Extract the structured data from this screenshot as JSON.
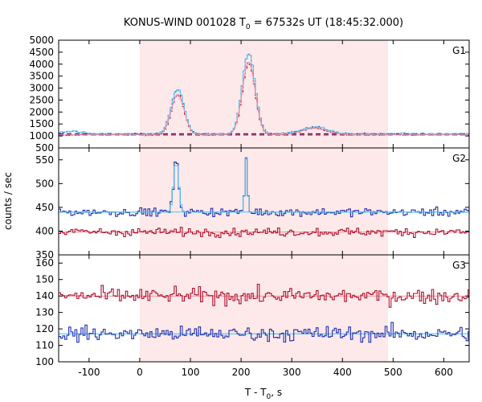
{
  "chart_data": {
    "type": "line",
    "title": "KONUS-WIND 001028 T",
    "title_sub": "0",
    "title_rest": " = 67532s UT (18:45:32.000)",
    "xlabel": "T - T",
    "xlabel_sub": "0",
    "xlabel_rest": ", s",
    "ylabel": "counts / sec",
    "xlim": [
      -160,
      650
    ],
    "xticks": [
      -100,
      0,
      100,
      200,
      300,
      400,
      500,
      600
    ],
    "shaded_interval": [
      0,
      490
    ],
    "colors": {
      "shade": "#fde9ea",
      "blue": "#1f2fb0",
      "red": "#b0102a",
      "cyan": "#4fc3f0",
      "pink": "#f08aa0"
    },
    "panels": [
      {
        "label": "G1",
        "ylim": [
          500,
          5000
        ],
        "yticks": [
          1000,
          1500,
          2000,
          2500,
          3000,
          3500,
          4000,
          4500,
          5000
        ],
        "extra_bottom_tick": 500,
        "background_level": 1080,
        "peaks": [
          {
            "t": 75,
            "peak_counts": 2950,
            "fwhm_s": 30
          },
          {
            "t": 215,
            "peak_counts": 4450,
            "fwhm_s": 30
          },
          {
            "t": 345,
            "peak_counts": 1380,
            "fwhm_s": 60
          }
        ],
        "series": [
          {
            "name": "G1 counts (blue)",
            "color_key": "blue"
          },
          {
            "name": "G1 model (cyan)",
            "color_key": "cyan"
          },
          {
            "name": "G1 second (red)",
            "color_key": "red"
          },
          {
            "name": "G1 second model (pink)",
            "color_key": "pink"
          }
        ]
      },
      {
        "label": "G2",
        "ylim": [
          350,
          575
        ],
        "yticks": [
          400,
          450,
          500,
          550
        ],
        "extra_bottom_tick": 350,
        "blue_level": 440,
        "red_level": 398,
        "peaks": [
          {
            "t": 72,
            "peak_counts": 545,
            "fwhm_s": 12
          },
          {
            "t": 210,
            "peak_counts": 555,
            "fwhm_s": 6
          }
        ],
        "series": [
          {
            "name": "G2 counts (blue)",
            "color_key": "blue"
          },
          {
            "name": "G2 counts (red)",
            "color_key": "red"
          }
        ]
      },
      {
        "label": "G3",
        "ylim": [
          100,
          165
        ],
        "yticks": [
          100,
          110,
          120,
          130,
          140,
          150,
          160
        ],
        "red_level": 140,
        "blue_level": 117,
        "series": [
          {
            "name": "G3 counts (red)",
            "color_key": "red"
          },
          {
            "name": "G3 counts (blue)",
            "color_key": "blue"
          }
        ]
      }
    ]
  }
}
